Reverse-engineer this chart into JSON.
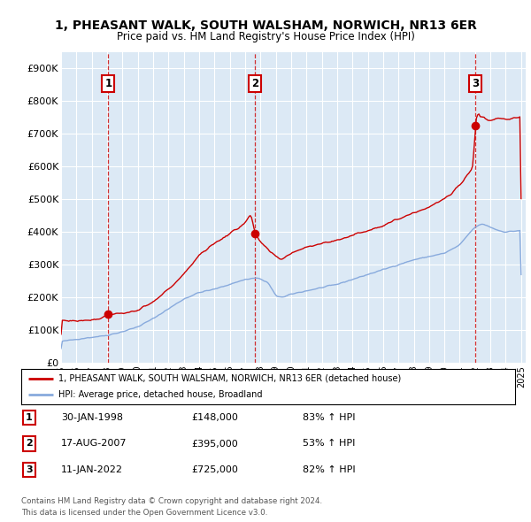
{
  "title1": "1, PHEASANT WALK, SOUTH WALSHAM, NORWICH, NR13 6ER",
  "title2": "Price paid vs. HM Land Registry's House Price Index (HPI)",
  "ylim": [
    0,
    950000
  ],
  "yticks": [
    0,
    100000,
    200000,
    300000,
    400000,
    500000,
    600000,
    700000,
    800000,
    900000
  ],
  "ytick_labels": [
    "£0",
    "£100K",
    "£200K",
    "£300K",
    "£400K",
    "£500K",
    "£600K",
    "£700K",
    "£800K",
    "£900K"
  ],
  "bg_color": "#dce9f5",
  "sale_color": "#cc0000",
  "hpi_color": "#88aadd",
  "legend_sale": "1, PHEASANT WALK, SOUTH WALSHAM, NORWICH, NR13 6ER (detached house)",
  "legend_hpi": "HPI: Average price, detached house, Broadland",
  "sale_dates_num": [
    1998.08,
    2007.63,
    2022.03
  ],
  "sale_prices": [
    148000,
    395000,
    725000
  ],
  "sale_labels": [
    "1",
    "2",
    "3"
  ],
  "table": [
    {
      "num": "1",
      "date": "30-JAN-1998",
      "price": "£148,000",
      "change": "83% ↑ HPI"
    },
    {
      "num": "2",
      "date": "17-AUG-2007",
      "price": "£395,000",
      "change": "53% ↑ HPI"
    },
    {
      "num": "3",
      "date": "11-JAN-2022",
      "price": "£725,000",
      "change": "82% ↑ HPI"
    }
  ],
  "footer1": "Contains HM Land Registry data © Crown copyright and database right 2024.",
  "footer2": "This data is licensed under the Open Government Licence v3.0."
}
